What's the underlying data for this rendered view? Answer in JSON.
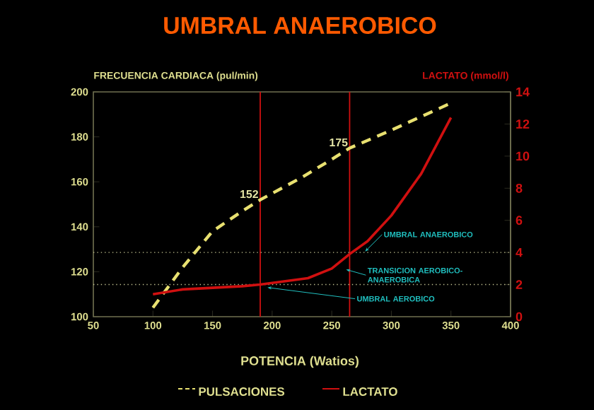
{
  "chart_data": {
    "type": "line",
    "title": "UMBRAL ANAEROBICO",
    "xlabel": "POTENCIA (Watios)",
    "ylabel": "FRECUENCIA CARDIACA (pul/min)",
    "y2label": "LACTATO (mmol/l)",
    "xlim": [
      50,
      400
    ],
    "xticks": [
      50,
      100,
      150,
      200,
      250,
      300,
      350,
      400
    ],
    "ylim": [
      100,
      200
    ],
    "yticks": [
      100,
      120,
      140,
      160,
      180,
      200
    ],
    "y2lim": [
      0,
      14
    ],
    "y2ticks": [
      0,
      2,
      4,
      6,
      8,
      10,
      12,
      14
    ],
    "legend": "bottom",
    "series": [
      {
        "name": "PULSACIONES",
        "color": "#e8e070",
        "line_style": "dashed",
        "x": [
          100,
          125,
          150,
          175,
          190,
          225,
          250,
          265,
          300,
          325,
          350
        ],
        "values": [
          104,
          122,
          138,
          147,
          152,
          162,
          170,
          175,
          183,
          189,
          195
        ]
      },
      {
        "name": "LACTATO",
        "color": "#d01010",
        "line_style": "solid",
        "axis": "y2",
        "x": [
          100,
          125,
          150,
          175,
          190,
          210,
          230,
          250,
          265,
          280,
          300,
          325,
          350
        ],
        "values": [
          1.4,
          1.7,
          1.8,
          1.9,
          2.0,
          2.2,
          2.4,
          3.0,
          3.9,
          4.7,
          6.3,
          8.9,
          12.4
        ]
      }
    ],
    "ref_lines": [
      {
        "axis": "y2",
        "value": 2,
        "color": "#c0c090",
        "line_style": "dotted"
      },
      {
        "axis": "y2",
        "value": 4,
        "color": "#c0c090",
        "line_style": "dotted"
      },
      {
        "axis": "x",
        "value": 190,
        "color": "#d01010",
        "line_style": "solid"
      },
      {
        "axis": "x",
        "value": 265,
        "color": "#d01010",
        "line_style": "solid"
      }
    ],
    "annotations": [
      {
        "text": "UMBRAL ANAEROBICO",
        "x": 278,
        "y": 129
      },
      {
        "text": "TRANSICION AEROBICO-ANAEROBICA",
        "x": 262,
        "y": 121
      },
      {
        "text": "UMBRAL AEROBICO",
        "x": 196,
        "y": 113
      },
      {
        "text": "152",
        "x": 190,
        "y": 152
      },
      {
        "text": "175",
        "x": 265,
        "y": 175
      }
    ]
  }
}
